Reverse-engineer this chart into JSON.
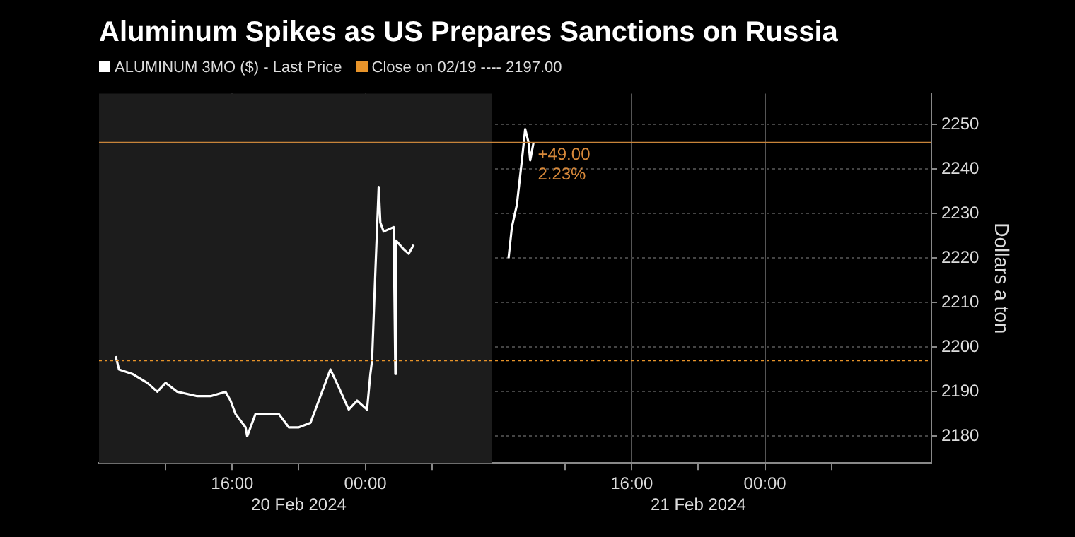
{
  "chart_data": {
    "type": "line",
    "title": "Aluminum Spikes as US Prepares Sanctions on Russia",
    "ylabel": "Dollars a ton",
    "x": [
      "2024-02-20T09:00",
      "2024-02-20T09:12",
      "2024-02-20T10:00",
      "2024-02-20T10:54",
      "2024-02-20T11:30",
      "2024-02-20T12:00",
      "2024-02-20T12:42",
      "2024-02-20T13:54",
      "2024-02-20T14:42",
      "2024-02-20T15:36",
      "2024-02-20T15:54",
      "2024-02-20T16:12",
      "2024-02-20T16:48",
      "2024-02-20T16:54",
      "2024-02-20T17:24",
      "2024-02-20T18:18",
      "2024-02-20T18:48",
      "2024-02-20T19:24",
      "2024-02-20T20:00",
      "2024-02-20T20:42",
      "2024-02-20T21:12",
      "2024-02-20T21:54",
      "2024-02-20T22:24",
      "2024-02-20T23:00",
      "2024-02-20T23:30",
      "2024-02-21T00:06",
      "2024-02-21T00:18",
      "2024-02-21T00:24",
      "2024-02-21T00:36",
      "2024-02-21T00:48",
      "2024-02-21T00:54",
      "2024-02-21T01:06",
      "2024-02-21T01:42",
      "2024-02-21T01:48",
      "2024-02-21T01:50",
      "2024-02-21T02:18",
      "2024-02-21T02:36",
      "2024-02-21T02:54",
      "2024-02-21T05:00",
      "2024-02-21T08:36",
      "2024-02-21T08:48",
      "2024-02-21T09:06",
      "2024-02-21T09:24",
      "2024-02-21T09:36",
      "2024-02-21T09:48",
      "2024-02-21T09:54",
      "2024-02-21T10:06"
    ],
    "series": [
      {
        "name": "ALUMINUM 3MO ($) - Last Price",
        "color": "#ffffff",
        "values": [
          2198,
          2195,
          2194,
          2192,
          2190,
          2192,
          2190,
          2189,
          2189,
          2190,
          2188,
          2185,
          2182,
          2180,
          2185,
          2185,
          2185,
          2182,
          2182,
          2183,
          2188,
          2195,
          2191,
          2186,
          2188,
          2186,
          2194,
          2197,
          2217,
          2236,
          2228,
          2226,
          2227,
          2194,
          2224,
          2222,
          2221,
          2223,
          null,
          2220,
          2227,
          2232,
          2242,
          2249,
          2246,
          2242,
          2246
        ]
      }
    ],
    "xlim": [
      "2024-02-20T08:00",
      "2024-02-22T10:00"
    ],
    "xticks": [
      {
        "value": "2024-02-20T12:00",
        "label": null
      },
      {
        "value": "2024-02-20T16:00",
        "label": "16:00"
      },
      {
        "value": "2024-02-20T20:00",
        "label": null
      },
      {
        "value": "2024-02-21T00:00",
        "label": "00:00"
      },
      {
        "value": "2024-02-21T04:00",
        "label": null
      },
      {
        "value": "2024-02-21T12:00",
        "label": null
      },
      {
        "value": "2024-02-21T16:00",
        "label": "16:00"
      },
      {
        "value": "2024-02-21T20:00",
        "label": null
      },
      {
        "value": "2024-02-22T00:00",
        "label": "00:00"
      },
      {
        "value": "2024-02-22T04:00",
        "label": null
      }
    ],
    "ylim": [
      2174,
      2257
    ],
    "yticks": [
      2180,
      2190,
      2200,
      2210,
      2220,
      2230,
      2240,
      2250
    ],
    "ref_lines": [
      {
        "axis": "y",
        "value": 2197,
        "label": "Close on 02/19 ---- 2197.00",
        "color": "#e8942a",
        "line_style": "dotted"
      },
      {
        "axis": "y",
        "value": 2246,
        "color": "#c8843a",
        "line_style": "solid"
      }
    ],
    "bands": [
      {
        "axis": "x",
        "from": "2024-02-20T08:00",
        "to": "2024-02-21T07:36",
        "color": "#1c1c1c"
      }
    ],
    "annotations": [
      {
        "text": "+49.00\n2.23%",
        "x": "2024-02-21T10:06",
        "y": 2246
      },
      "20 Feb 2024",
      "21 Feb 2024"
    ],
    "grid": true,
    "legend": "top left",
    "marker": "none",
    "line_style": "solid"
  }
}
